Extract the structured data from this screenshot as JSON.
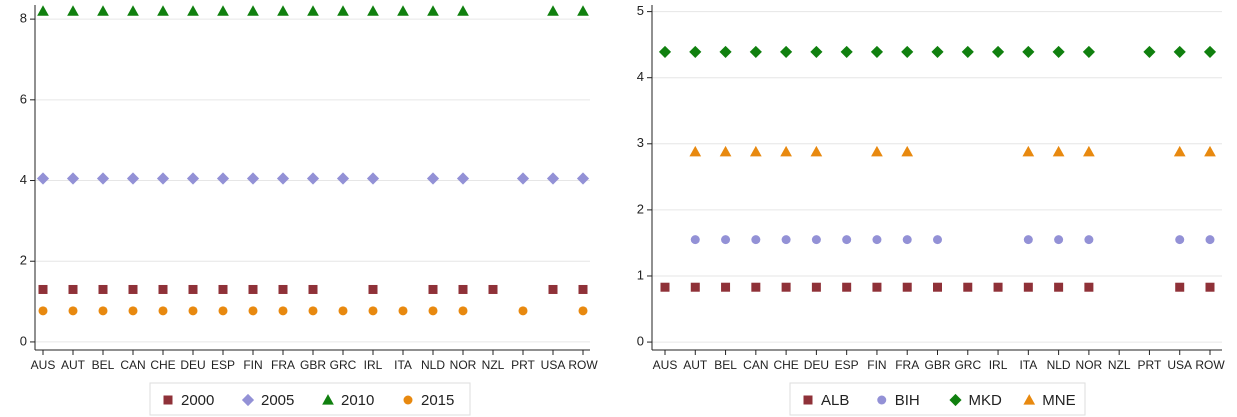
{
  "chart_data": [
    {
      "type": "scatter",
      "categories": [
        "AUS",
        "AUT",
        "BEL",
        "CAN",
        "CHE",
        "DEU",
        "ESP",
        "FIN",
        "FRA",
        "GBR",
        "GRC",
        "IRL",
        "ITA",
        "NLD",
        "NOR",
        "NZL",
        "PRT",
        "USA",
        "ROW"
      ],
      "ylim": [
        -0.2,
        8.35
      ],
      "yticks": [
        0,
        2,
        4,
        6,
        8
      ],
      "grid": true,
      "series": [
        {
          "name": "2000",
          "color": "#8f3138",
          "marker": "square",
          "values": [
            1.3,
            1.3,
            1.3,
            1.3,
            1.3,
            1.3,
            1.3,
            1.3,
            1.3,
            1.3,
            null,
            1.3,
            null,
            1.3,
            1.3,
            1.3,
            null,
            1.3,
            1.3
          ]
        },
        {
          "name": "2005",
          "color": "#9391d6",
          "marker": "diamond",
          "values": [
            4.05,
            4.05,
            4.05,
            4.05,
            4.05,
            4.05,
            4.05,
            4.05,
            4.05,
            4.05,
            4.05,
            4.05,
            null,
            4.05,
            4.05,
            null,
            4.05,
            4.05,
            4.05
          ]
        },
        {
          "name": "2010",
          "color": "#10800f",
          "marker": "triangle",
          "values": [
            8.2,
            8.2,
            8.2,
            8.2,
            8.2,
            8.2,
            8.2,
            8.2,
            8.2,
            8.2,
            8.2,
            8.2,
            8.2,
            8.2,
            8.2,
            null,
            null,
            8.2,
            8.2
          ]
        },
        {
          "name": "2015",
          "color": "#e8890f",
          "marker": "circle",
          "values": [
            0.77,
            0.77,
            0.77,
            0.77,
            0.77,
            0.77,
            0.77,
            0.77,
            0.77,
            0.77,
            0.77,
            0.77,
            0.77,
            0.77,
            0.77,
            null,
            0.77,
            null,
            0.77
          ]
        }
      ]
    },
    {
      "type": "scatter",
      "categories": [
        "AUS",
        "AUT",
        "BEL",
        "CAN",
        "CHE",
        "DEU",
        "ESP",
        "FIN",
        "FRA",
        "GBR",
        "GRC",
        "IRL",
        "ITA",
        "NLD",
        "NOR",
        "NZL",
        "PRT",
        "USA",
        "ROW"
      ],
      "ylim": [
        -0.12,
        5.1
      ],
      "yticks": [
        0,
        1,
        2,
        3,
        4,
        5
      ],
      "grid": true,
      "series": [
        {
          "name": "ALB",
          "color": "#8f3138",
          "marker": "square",
          "values": [
            0.83,
            0.83,
            0.83,
            0.83,
            0.83,
            0.83,
            0.83,
            0.83,
            0.83,
            0.83,
            0.83,
            0.83,
            0.83,
            0.83,
            0.83,
            null,
            null,
            0.83,
            0.83
          ]
        },
        {
          "name": "BIH",
          "color": "#9391d6",
          "marker": "circle",
          "values": [
            null,
            1.55,
            1.55,
            1.55,
            1.55,
            1.55,
            1.55,
            1.55,
            1.55,
            1.55,
            null,
            null,
            1.55,
            1.55,
            1.55,
            null,
            null,
            1.55,
            1.55
          ]
        },
        {
          "name": "MKD",
          "color": "#10800f",
          "marker": "diamond",
          "values": [
            4.39,
            4.39,
            4.39,
            4.39,
            4.39,
            4.39,
            4.39,
            4.39,
            4.39,
            4.39,
            4.39,
            4.39,
            4.39,
            4.39,
            4.39,
            null,
            4.39,
            4.39,
            4.39
          ]
        },
        {
          "name": "MNE",
          "color": "#e8890f",
          "marker": "triangle",
          "values": [
            null,
            2.88,
            2.88,
            2.88,
            2.88,
            2.88,
            null,
            2.88,
            2.88,
            null,
            null,
            null,
            2.88,
            2.88,
            2.88,
            null,
            null,
            2.88,
            2.88
          ]
        }
      ]
    }
  ]
}
